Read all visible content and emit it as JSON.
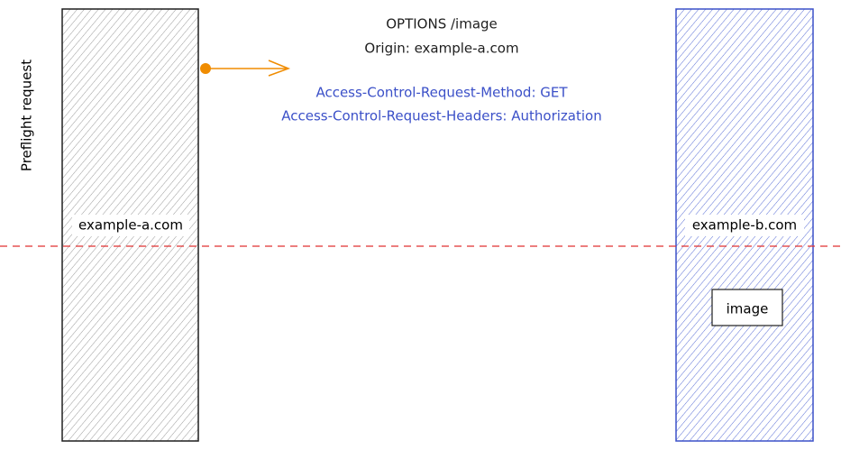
{
  "side_label": "Preflight request",
  "nodes": [
    {
      "label": "example-a.com"
    },
    {
      "label": "example-b.com"
    }
  ],
  "resource": {
    "label": "image"
  },
  "request": {
    "lines": [
      "OPTIONS /image",
      "Origin: example-a.com"
    ],
    "headers": [
      "Access-Control-Request-Method: GET",
      "Access-Control-Request-Headers: Authorization"
    ]
  }
}
